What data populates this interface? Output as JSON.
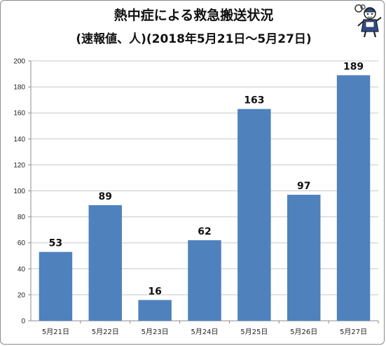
{
  "title": "熱中症による救急搬送状況",
  "subtitle": "(速報値、人)(2018年5月21日〜5月27日)",
  "mascot_icon": "mascot-character-icon",
  "colors": {
    "bar": "#4f81bd",
    "grid": "#c8c8c8",
    "axis": "#8c8c8c"
  },
  "chart_data": {
    "type": "bar",
    "title": "熱中症による救急搬送状況",
    "subtitle": "(速報値、人)(2018年5月21日〜5月27日)",
    "categories": [
      "5月21日",
      "5月22日",
      "5月23日",
      "5月24日",
      "5月25日",
      "5月26日",
      "5月27日"
    ],
    "values": [
      53,
      89,
      16,
      62,
      163,
      97,
      189
    ],
    "data_labels": [
      "53",
      "89",
      "16",
      "62",
      "163",
      "97",
      "189"
    ],
    "yticks": [
      "0",
      "20",
      "40",
      "60",
      "80",
      "100",
      "120",
      "140",
      "160",
      "180",
      "200"
    ],
    "ylim": [
      0,
      200
    ],
    "xlabel": "",
    "ylabel": "",
    "grid": true
  }
}
